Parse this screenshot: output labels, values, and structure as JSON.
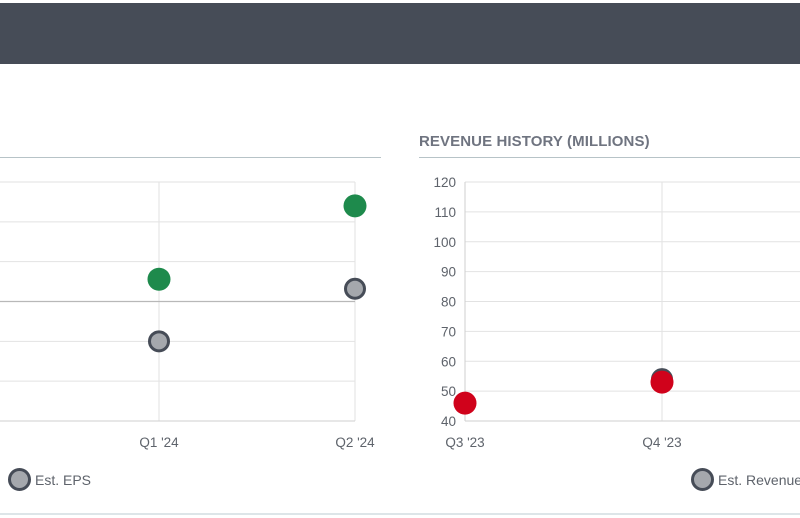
{
  "colors": {
    "header_bg": "#464c57",
    "estimate_fill": "#a5a8ad",
    "estimate_stroke": "#464c57",
    "eps_actual": "#1e8a4c",
    "revenue_actual": "#d0021b",
    "grid": "#e2e2e2",
    "text": "#5e636b"
  },
  "chart_data": [
    {
      "type": "scatter",
      "title": "",
      "categories": [
        "Q1 '24",
        "Q2 '24"
      ],
      "series": [
        {
          "name": "Est. EPS",
          "values": [
            -0.5,
            0.16
          ]
        },
        {
          "name": "",
          "values": [
            0.28,
            1.2
          ]
        }
      ],
      "ylim": [
        -1.5,
        1.5
      ],
      "zero_line": true,
      "grid": true,
      "legend": "bottom",
      "partially_visible": true
    },
    {
      "type": "scatter",
      "title": "REVENUE HISTORY (MILLIONS)",
      "categories": [
        "Q3 '23",
        "Q4 '23"
      ],
      "series": [
        {
          "name": "Est. Revenue",
          "values": [
            null,
            54
          ]
        },
        {
          "name": "",
          "values": [
            46,
            53
          ]
        }
      ],
      "ylim": [
        40,
        120
      ],
      "yticks": [
        40,
        50,
        60,
        70,
        80,
        90,
        100,
        110,
        120
      ],
      "grid": true,
      "legend": "bottom",
      "partially_visible": true
    }
  ]
}
